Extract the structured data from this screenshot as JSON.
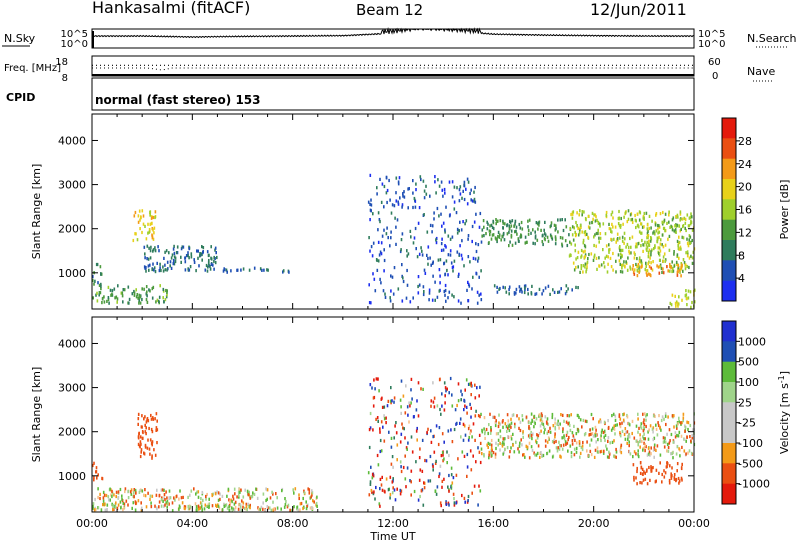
{
  "header": {
    "station": "Hankasalmi (fitACF)",
    "beam": "Beam 12",
    "date": "12/Jun/2011"
  },
  "colors": {
    "power_scale": [
      "#1d2ff0",
      "#1f4fb4",
      "#2f7c5c",
      "#4c9a3d",
      "#9fcf2c",
      "#e8d11a",
      "#f39a18",
      "#ea4f12",
      "#e41a0c"
    ],
    "velocity_scale": [
      "#e41a0c",
      "#ea4f12",
      "#f39a18",
      "#f7c08a",
      "#c8c8c8",
      "#c8c8c8",
      "#9fd48a",
      "#5dbb3a",
      "#2f7c5c",
      "#1f4fb4",
      "#2030d0"
    ]
  },
  "chart_data": [
    {
      "type": "line",
      "panel": "N.Sky / N.Search",
      "ylabel_left": "N.Sky",
      "ylabel_right": "N.Search",
      "left_ticks": [
        "10^5",
        "10^0"
      ],
      "right_ticks": [
        "10^5",
        "10^0"
      ],
      "xlim": [
        0,
        24
      ],
      "series": [
        {
          "name": "N.Sky",
          "x": [
            0,
            2,
            4,
            6,
            8,
            10,
            12,
            13,
            14,
            15,
            16,
            18,
            20,
            22,
            24
          ],
          "y": [
            0.6,
            0.6,
            0.55,
            0.58,
            0.6,
            0.62,
            0.75,
            0.95,
            0.9,
            0.8,
            0.7,
            0.65,
            0.62,
            0.6,
            0.6
          ]
        }
      ]
    },
    {
      "type": "line",
      "panel": "Freq / Nave",
      "ylabel_left": "Freq. [MHz]",
      "ylabel_right": "Nave",
      "left_ticks": [
        "18",
        "8"
      ],
      "right_ticks": [
        "60",
        "0"
      ],
      "xlim": [
        0,
        24
      ],
      "series": [
        {
          "name": "Nave",
          "x": [
            0,
            24
          ],
          "y": [
            32,
            32
          ]
        },
        {
          "name": "Freq",
          "x": [
            0,
            2.2,
            2.8,
            3.2,
            12,
            24
          ],
          "y": [
            12,
            12,
            11,
            12,
            12,
            12
          ]
        }
      ]
    },
    {
      "type": "table",
      "panel": "CPID",
      "label": "CPID",
      "text": "normal (fast stereo) 153"
    },
    {
      "type": "heatmap",
      "panel": "Power",
      "ylabel": "Slant Range [km]",
      "colorbar_label": "Power [dB]",
      "colorbar_ticks": [
        4,
        8,
        12,
        16,
        20,
        24,
        28
      ],
      "colorbar_range": [
        0,
        32
      ],
      "xlim": [
        0,
        24
      ],
      "ylim": [
        180,
        4600
      ],
      "yticks": [
        1000,
        2000,
        3000,
        4000
      ],
      "regions": [
        {
          "t": [
            0.0,
            0.4
          ],
          "r": [
            700,
            1200
          ],
          "v": 10
        },
        {
          "t": [
            0.0,
            3.0
          ],
          "r": [
            300,
            700
          ],
          "v": 14
        },
        {
          "t": [
            1.6,
            2.5
          ],
          "r": [
            1700,
            2400
          ],
          "v": 22
        },
        {
          "t": [
            2.0,
            5.0
          ],
          "r": [
            1000,
            1600
          ],
          "v": 8
        },
        {
          "t": [
            5.0,
            8.0
          ],
          "r": [
            1000,
            1100
          ],
          "v": 8
        },
        {
          "t": [
            11.0,
            15.5
          ],
          "r": [
            300,
            3200
          ],
          "v": 6
        },
        {
          "t": [
            15.5,
            19.0
          ],
          "r": [
            1600,
            2200
          ],
          "v": 12
        },
        {
          "t": [
            16.0,
            19.5
          ],
          "r": [
            500,
            700
          ],
          "v": 8
        },
        {
          "t": [
            19.0,
            24.0
          ],
          "r": [
            1000,
            2400
          ],
          "v": 18
        },
        {
          "t": [
            21.5,
            23.5
          ],
          "r": [
            900,
            1200
          ],
          "v": 26
        },
        {
          "t": [
            23.0,
            24.0
          ],
          "r": [
            200,
            600
          ],
          "v": 20
        }
      ]
    },
    {
      "type": "heatmap",
      "panel": "Velocity",
      "ylabel": "Slant Range [km]",
      "xlabel": "Time UT",
      "colorbar_label": "Velocity [m s^-1]",
      "colorbar_ticks": [
        1000,
        500,
        100,
        25,
        -25,
        -100,
        -500,
        -1000
      ],
      "colorbar_range": [
        -1000,
        1000
      ],
      "xlim": [
        0,
        24
      ],
      "xticks": [
        "00:00",
        "04:00",
        "08:00",
        "12:00",
        "16:00",
        "20:00",
        "00:00"
      ],
      "ylim": [
        180,
        4600
      ],
      "yticks": [
        1000,
        2000,
        3000,
        4000
      ],
      "regions": [
        {
          "t": [
            0.0,
            0.4
          ],
          "r": [
            900,
            1300
          ],
          "v": -300
        },
        {
          "t": [
            1.8,
            2.6
          ],
          "r": [
            1300,
            2400
          ],
          "v": -300
        },
        {
          "t": [
            0.0,
            9.0
          ],
          "r": [
            200,
            700
          ],
          "v": 0
        },
        {
          "t": [
            0.0,
            9.0
          ],
          "r": [
            200,
            300
          ],
          "v": 100
        },
        {
          "t": [
            11.0,
            15.5
          ],
          "r": [
            300,
            3200
          ],
          "v": 0
        },
        {
          "t": [
            15.5,
            24.0
          ],
          "r": [
            1400,
            2400
          ],
          "v": 0
        },
        {
          "t": [
            21.5,
            23.5
          ],
          "r": [
            800,
            1300
          ],
          "v": -300
        }
      ]
    }
  ]
}
